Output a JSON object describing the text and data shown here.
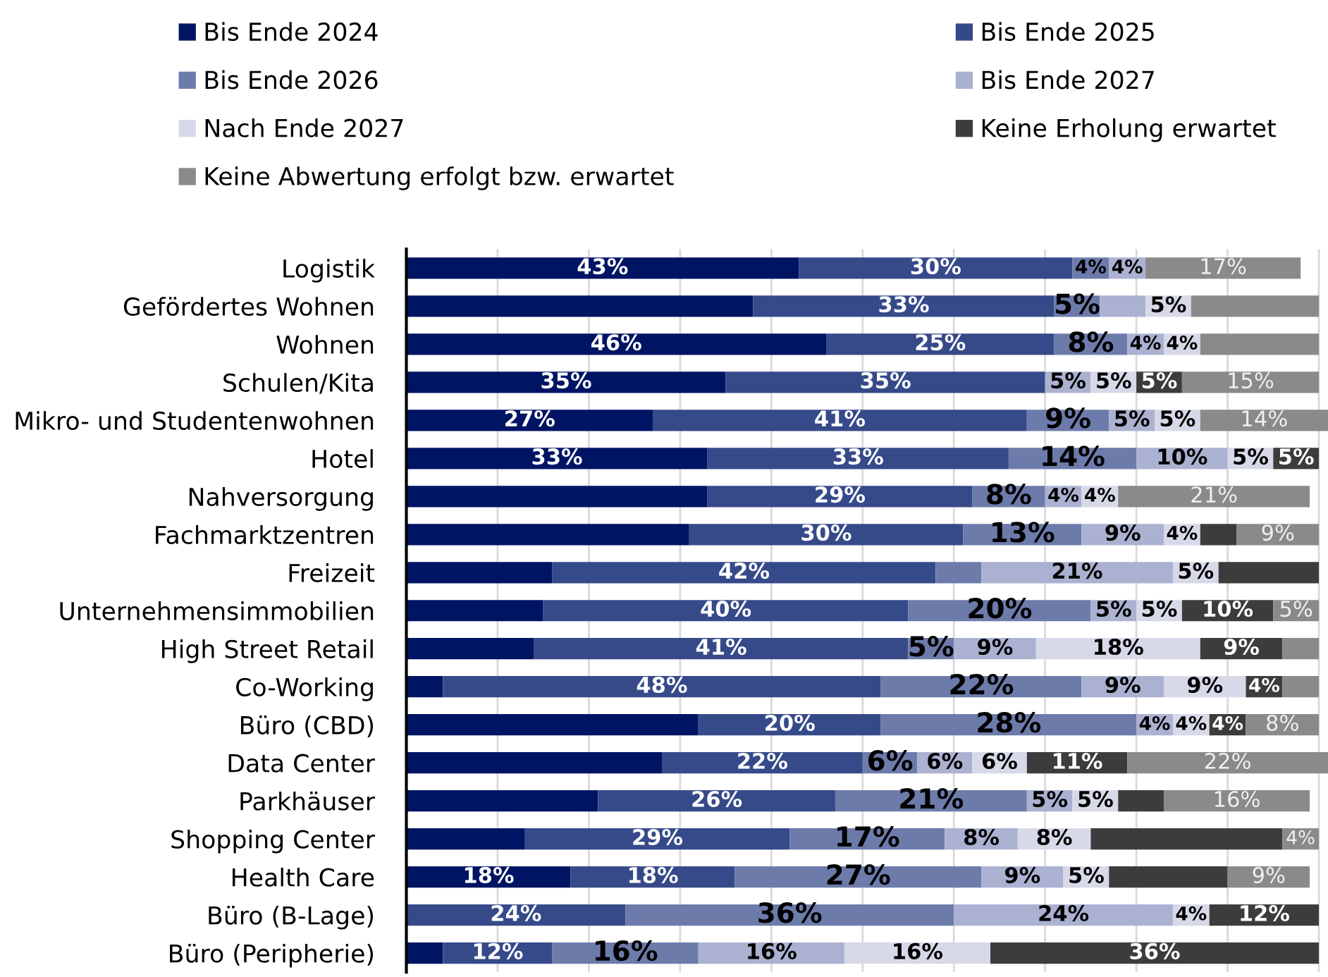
{
  "chart_data": {
    "type": "bar",
    "orientation": "horizontal",
    "stacked": true,
    "legend": "top",
    "grid": "x",
    "tick_labels": "y",
    "xlim": [
      0,
      101
    ],
    "xticks": [
      {
        "value": 0,
        "label": null
      },
      {
        "value": 10,
        "label": null
      },
      {
        "value": 20,
        "label": null
      },
      {
        "value": 30,
        "label": null
      },
      {
        "value": 40,
        "label": null
      },
      {
        "value": 50,
        "label": null
      },
      {
        "value": 60,
        "label": null
      },
      {
        "value": 70,
        "label": null
      },
      {
        "value": 80,
        "label": null
      },
      {
        "value": 90,
        "label": null
      },
      {
        "value": 100,
        "label": null
      }
    ],
    "categories": [
      "Logistik",
      "Gefördertes Wohnen",
      "Wohnen",
      "Schulen/Kita",
      "Mikro- und Studentenwohnen",
      "Hotel",
      "Nahversorgung",
      "Fachmarktzentren",
      "Freizeit",
      "Unternehmensimmobilien",
      "High Street Retail",
      "Co-Working",
      "Büro (CBD)",
      "Data Center",
      "Parkhäuser",
      "Shopping Center",
      "Health Care",
      "Büro (B-Lage)",
      "Büro (Peripherie)"
    ],
    "series": [
      {
        "name": "Bis Ende 2024",
        "color": "#001464",
        "values": [
          43,
          38,
          46,
          35,
          27,
          33,
          33,
          31,
          16,
          15,
          14,
          4,
          32,
          28,
          21,
          13,
          18,
          0,
          4
        ],
        "value_labels": [
          "43%",
          null,
          "46%",
          "35%",
          "27%",
          "33%",
          null,
          null,
          null,
          null,
          null,
          null,
          null,
          null,
          null,
          null,
          "18%",
          null,
          null
        ]
      },
      {
        "name": "Bis Ende 2025",
        "color": "#364a8a",
        "values": [
          30,
          33,
          25,
          35,
          41,
          33,
          29,
          30,
          42,
          40,
          41,
          48,
          20,
          22,
          26,
          29,
          18,
          24,
          12
        ],
        "value_labels": [
          "30%",
          "33%",
          "25%",
          "35%",
          "41%",
          "33%",
          "29%",
          "30%",
          "42%",
          "40%",
          "41%",
          "48%",
          "20%",
          "22%",
          "26%",
          "29%",
          "18%",
          "24%",
          "12%"
        ]
      },
      {
        "name": "Bis Ende 2026",
        "color": "#6d7bab",
        "values": [
          4,
          5,
          8,
          0,
          9,
          14,
          8,
          13,
          5,
          20,
          5,
          22,
          28,
          6,
          21,
          17,
          27,
          36,
          16
        ],
        "value_labels": [
          "4%",
          "5%",
          "8%",
          null,
          "9%",
          "14%",
          "8%",
          "13%",
          null,
          "20%",
          "5%",
          "22%",
          "28%",
          "6%",
          "21%",
          "17%",
          "27%",
          "36%",
          "16%"
        ]
      },
      {
        "name": "Bis Ende 2027",
        "color": "#abb1d1",
        "values": [
          4,
          5,
          4,
          5,
          5,
          10,
          4,
          9,
          21,
          5,
          9,
          9,
          4,
          6,
          5,
          8,
          9,
          24,
          16
        ],
        "value_labels": [
          "4%",
          null,
          "4%",
          "5%",
          "5%",
          "10%",
          "4%",
          "9%",
          "21%",
          "5%",
          "9%",
          "9%",
          "4%",
          "6%",
          "5%",
          "8%",
          "9%",
          "24%",
          "16%"
        ]
      },
      {
        "name": "Nach Ende 2027",
        "color": "#d7d9e8",
        "values": [
          0,
          5,
          4,
          5,
          5,
          5,
          4,
          4,
          5,
          5,
          18,
          9,
          4,
          6,
          5,
          8,
          5,
          4,
          16
        ],
        "value_labels": [
          null,
          "5%",
          "4%",
          "5%",
          "5%",
          "5%",
          "4%",
          "4%",
          "5%",
          "5%",
          "18%",
          "9%",
          "4%",
          "6%",
          "5%",
          "8%",
          "5%",
          "4%",
          "16%"
        ]
      },
      {
        "name": "Keine Erholung erwartet",
        "color": "#3c3c3c",
        "values": [
          0,
          0,
          0,
          5,
          0,
          5,
          0,
          4,
          11,
          10,
          9,
          4,
          4,
          11,
          5,
          21,
          13,
          12,
          36
        ],
        "value_labels": [
          null,
          null,
          null,
          "5%",
          null,
          "5%",
          null,
          null,
          null,
          "10%",
          "9%",
          "4%",
          "4%",
          "11%",
          null,
          null,
          null,
          "12%",
          "36%"
        ]
      },
      {
        "name": "Keine Abwertung erfolgt bzw. erwartet",
        "color": "#8a8a8a",
        "values": [
          17,
          14,
          13,
          15,
          14,
          0,
          21,
          9,
          0,
          5,
          4,
          4,
          8,
          22,
          16,
          4,
          9,
          0,
          0
        ],
        "value_labels": [
          "17%",
          null,
          null,
          "15%",
          "14%",
          null,
          "21%",
          "9%",
          null,
          "5%",
          null,
          null,
          "8%",
          "22%",
          "16%",
          "4%",
          "9%",
          null,
          null
        ]
      }
    ]
  }
}
